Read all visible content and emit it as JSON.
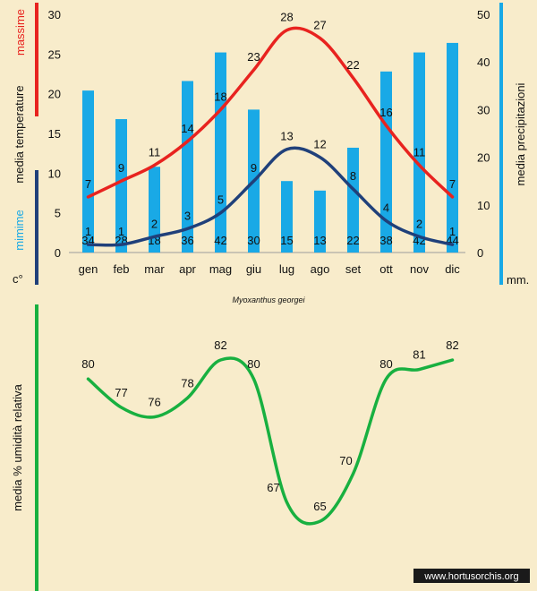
{
  "colors": {
    "background": "#f8eccb",
    "max_temp": "#e8231f",
    "min_temp": "#20407a",
    "precip": "#19a9e6",
    "humidity": "#18b040",
    "watermark_bg": "#1a1a1a",
    "watermark_fg": "#ffffff"
  },
  "species": "Myoxanthus georgei",
  "watermark": "www.hortusorchis.org",
  "chart_data": [
    {
      "type": "bar+line",
      "title": "",
      "categories": [
        "gen",
        "feb",
        "mar",
        "apr",
        "mag",
        "giu",
        "lug",
        "ago",
        "set",
        "ott",
        "nov",
        "dic"
      ],
      "left_axis": {
        "ticks": [
          "0",
          "5",
          "10",
          "15",
          "20",
          "25",
          "30"
        ],
        "ylim": [
          0,
          30
        ],
        "label_max": "massime",
        "label_mid": "media temperature",
        "label_min": "mimime",
        "unit": "c°"
      },
      "right_axis": {
        "ticks": [
          "0",
          "10",
          "20",
          "30",
          "40",
          "50"
        ],
        "ylim": [
          0,
          50
        ],
        "label": "media precipitazioni",
        "unit": "mm."
      },
      "series": [
        {
          "name": "media precipitazioni",
          "type": "bar",
          "axis": "right",
          "values": [
            34,
            28,
            18,
            36,
            42,
            30,
            15,
            13,
            22,
            38,
            42,
            44
          ]
        },
        {
          "name": "massime",
          "type": "line",
          "axis": "left",
          "values": [
            7,
            9,
            11,
            14,
            18,
            23,
            28,
            27,
            22,
            16,
            11,
            7
          ]
        },
        {
          "name": "mimime",
          "type": "line",
          "axis": "left",
          "values": [
            1,
            1,
            2,
            3,
            5,
            9,
            13,
            12,
            8,
            4,
            2,
            1
          ]
        }
      ]
    },
    {
      "type": "line",
      "title": "",
      "ylabel": "media % umidità relativa",
      "categories": [
        "gen",
        "feb",
        "mar",
        "apr",
        "mag",
        "giu",
        "lug",
        "ago",
        "set",
        "ott",
        "nov",
        "dic"
      ],
      "series": [
        {
          "name": "media % umidità relativa",
          "values": [
            80,
            77,
            76,
            78,
            82,
            80,
            67,
            65,
            70,
            80,
            81,
            82
          ]
        }
      ],
      "ylim": [
        60,
        84
      ]
    }
  ]
}
